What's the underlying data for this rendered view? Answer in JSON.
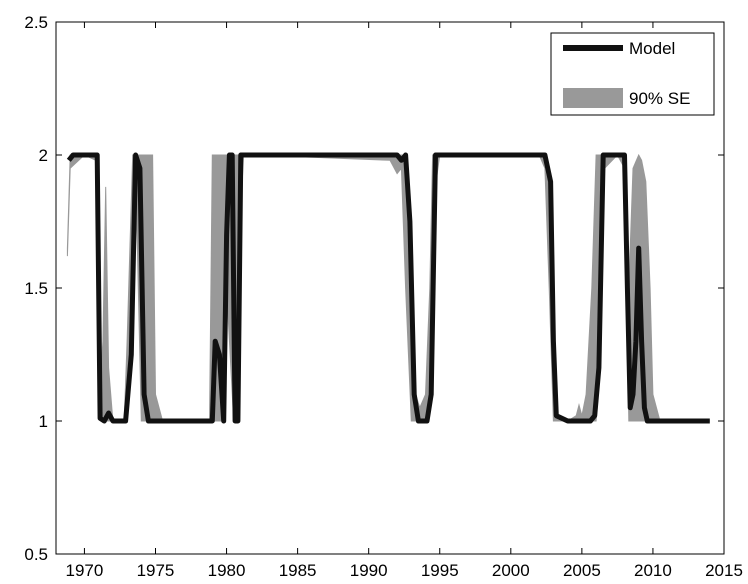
{
  "chart_data": {
    "type": "line",
    "title": "",
    "xlabel": "",
    "ylabel": "",
    "xlim": [
      1968,
      2015
    ],
    "ylim": [
      0.5,
      2.5
    ],
    "xticks": [
      1970,
      1975,
      1980,
      1985,
      1990,
      1995,
      2000,
      2005,
      2010,
      2015
    ],
    "yticks": [
      0.5,
      1,
      1.5,
      2,
      2.5
    ],
    "xtick_labels": [
      "1970",
      "1975",
      "1980",
      "1985",
      "1990",
      "1995",
      "2000",
      "2005",
      "2010",
      "2015"
    ],
    "ytick_labels": [
      "0.5",
      "1",
      "1.5",
      "2",
      "2.5"
    ],
    "grid": false,
    "legend_position": "top-right",
    "colors": {
      "model": "#111111",
      "band": "#999999"
    },
    "series": [
      {
        "name": "Model",
        "kind": "line",
        "x": [
          1968.9,
          1969.2,
          1970.0,
          1970.9,
          1971.1,
          1971.4,
          1971.7,
          1972.0,
          1972.6,
          1972.9,
          1973.3,
          1973.6,
          1973.9,
          1974.2,
          1974.5,
          1974.7,
          1975.5,
          1976.5,
          1977.5,
          1978.6,
          1979.0,
          1979.2,
          1979.5,
          1979.8,
          1980.0,
          1980.2,
          1980.4,
          1980.6,
          1980.8,
          1981.0,
          1981.2,
          1982.0,
          1985.0,
          1988.0,
          1991.0,
          1992.0,
          1992.3,
          1992.6,
          1992.9,
          1993.2,
          1993.5,
          1993.8,
          1994.1,
          1994.4,
          1994.7,
          1995.0,
          1998.0,
          2001.0,
          2002.4,
          2002.8,
          2003.0,
          2003.2,
          2004.0,
          2005.0,
          2005.6,
          2005.9,
          2006.2,
          2006.5,
          2007.5,
          2008.0,
          2008.2,
          2008.4,
          2008.6,
          2008.8,
          2009.0,
          2009.2,
          2009.4,
          2009.6,
          2009.8,
          2010.0,
          2010.4,
          2011.0,
          2012.0,
          2013.0,
          2014.0
        ],
        "y": [
          1.98,
          2.0,
          2.0,
          2.0,
          1.01,
          1.0,
          1.03,
          1.0,
          1.0,
          1.0,
          1.25,
          2.0,
          1.95,
          1.1,
          1.0,
          1.0,
          1.0,
          1.0,
          1.0,
          1.0,
          1.0,
          1.3,
          1.25,
          1.0,
          1.7,
          2.0,
          2.0,
          1.0,
          1.0,
          2.0,
          2.0,
          2.0,
          2.0,
          2.0,
          2.0,
          2.0,
          1.98,
          2.0,
          1.75,
          1.1,
          1.0,
          1.0,
          1.0,
          1.1,
          2.0,
          2.0,
          2.0,
          2.0,
          2.0,
          1.9,
          1.3,
          1.02,
          1.0,
          1.0,
          1.0,
          1.02,
          1.2,
          2.0,
          2.0,
          2.0,
          1.5,
          1.05,
          1.1,
          1.3,
          1.65,
          1.3,
          1.05,
          1.0,
          1.0,
          1.0,
          1.0,
          1.0,
          1.0,
          1.0,
          1.0
        ]
      },
      {
        "name": "90% SE",
        "kind": "band",
        "x": [
          1968.8,
          1969.0,
          1970.0,
          1970.8,
          1971.0,
          1971.3,
          1971.5,
          1971.7,
          1972.0,
          1972.8,
          1973.0,
          1973.4,
          1973.6,
          1974.0,
          1974.2,
          1974.5,
          1974.8,
          1975.0,
          1975.5,
          1978.5,
          1978.8,
          1979.0,
          1979.3,
          1979.6,
          1980.0,
          1980.5,
          1981.0,
          1981.2,
          1982.0,
          1991.5,
          1992.0,
          1992.3,
          1992.6,
          1993.0,
          1993.3,
          1993.6,
          1994.0,
          1994.3,
          1994.5,
          1995.0,
          2002.0,
          2002.4,
          2002.7,
          2003.0,
          2003.2,
          2004.0,
          2004.6,
          2004.8,
          2005.0,
          2005.3,
          2005.7,
          2006.0,
          2006.3,
          2006.6,
          2007.5,
          2008.0,
          2008.3,
          2008.6,
          2009.0,
          2009.2,
          2009.5,
          2009.8,
          2010.0,
          2010.5,
          2011.0,
          2014.0
        ],
        "lower": [
          1.62,
          1.95,
          2.0,
          1.98,
          1.01,
          1.0,
          1.0,
          1.0,
          1.0,
          1.0,
          1.0,
          1.5,
          1.95,
          1.0,
          1.0,
          1.0,
          1.0,
          1.0,
          1.0,
          1.0,
          1.0,
          1.0,
          1.0,
          1.0,
          1.5,
          1.0,
          1.8,
          2.0,
          2.0,
          1.98,
          1.93,
          1.95,
          1.5,
          1.0,
          1.0,
          1.0,
          1.0,
          1.05,
          1.8,
          2.0,
          2.0,
          1.95,
          1.5,
          1.0,
          1.0,
          1.0,
          1.0,
          1.0,
          1.0,
          1.0,
          1.0,
          1.0,
          1.2,
          1.95,
          2.0,
          1.95,
          1.0,
          1.0,
          1.0,
          1.0,
          1.0,
          1.0,
          1.0,
          1.0,
          1.0,
          1.0
        ],
        "upper": [
          1.65,
          2.0,
          2.0,
          2.0,
          1.05,
          1.3,
          1.88,
          1.2,
          1.0,
          1.0,
          1.3,
          2.0,
          2.0,
          2.0,
          2.0,
          2.0,
          2.0,
          1.1,
          1.0,
          1.0,
          1.0,
          2.0,
          2.0,
          2.0,
          2.0,
          2.0,
          2.0,
          2.0,
          2.0,
          2.0,
          2.0,
          2.0,
          2.0,
          1.5,
          1.1,
          1.05,
          1.1,
          1.5,
          2.0,
          2.0,
          2.0,
          2.0,
          1.95,
          1.2,
          1.02,
          1.0,
          1.02,
          1.06,
          1.02,
          1.1,
          1.5,
          2.0,
          2.0,
          2.0,
          2.0,
          2.0,
          1.5,
          1.95,
          2.0,
          1.98,
          1.9,
          1.5,
          1.1,
          1.0,
          1.0,
          1.0
        ]
      }
    ]
  }
}
